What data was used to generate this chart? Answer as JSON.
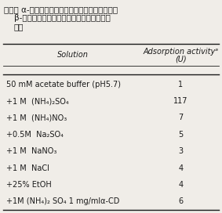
{
  "title_line1": "表２． α-サイクロデキストリンカラムへのダイズ",
  "title_line2": "β-アミラーゼの吸着に対する種々の試薬の",
  "title_line3": "効果",
  "col1_header": "Solution",
  "col2_header_line1": "Adsorption activityᵃ",
  "col2_header_line2": "(U)",
  "rows": [
    [
      "50 mM acetate buffer (pH5.7)",
      "1"
    ],
    [
      "+1 M  (NH₄)₂SO₄",
      "117"
    ],
    [
      "+1 M  (NH₄)NO₃",
      "7"
    ],
    [
      "+0.5M  Na₂SO₄",
      "5"
    ],
    [
      "+1 M  NaNO₃",
      "3"
    ],
    [
      "+1 M  NaCl",
      "4"
    ],
    [
      "+25% EtOH",
      "4"
    ],
    [
      "+1M (NH₄)₂ SO₄ 1 mg/mlα-CD",
      "6"
    ]
  ],
  "bg_color": "#f0ede8",
  "text_color": "#1a1a1a",
  "font_size": 7.0,
  "title_font_size": 7.5
}
